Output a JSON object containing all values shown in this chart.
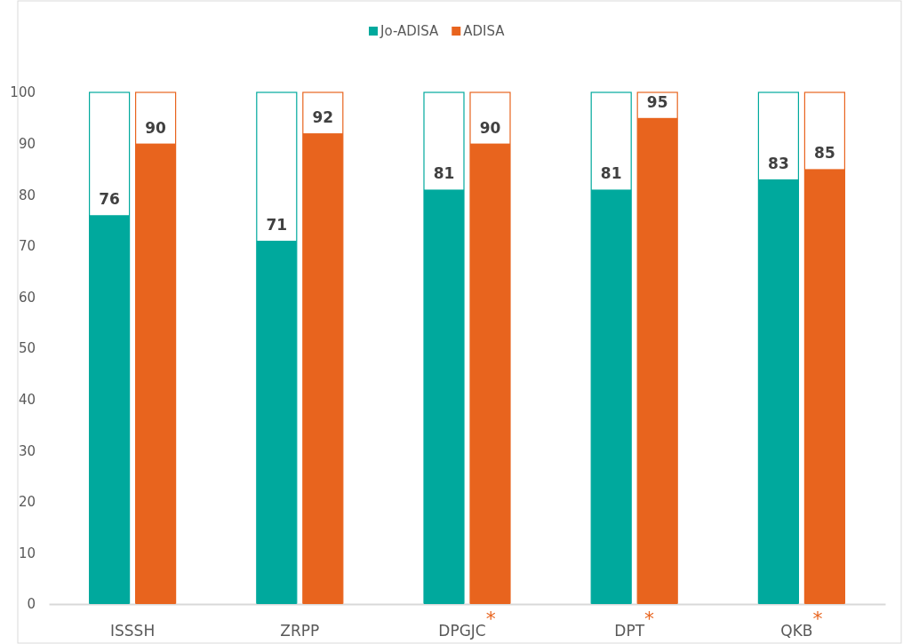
{
  "chart_data": {
    "type": "bar",
    "categories": [
      "ISSSH",
      "ZRPP",
      "DPGJC$^{*}$",
      "DPT$^{*}$",
      "QKB$^{*}$"
    ],
    "series": [
      {
        "name": "Jo-ADISA",
        "color": "#00a99d",
        "values": [
          76,
          71,
          81,
          81,
          83
        ]
      },
      {
        "name": "ADISA",
        "color": "#e8641e",
        "values": [
          90,
          92,
          90,
          95,
          85
        ]
      }
    ],
    "ylim": [
      0,
      100
    ],
    "yticks": [
      0,
      10,
      20,
      30,
      40,
      50,
      60,
      70,
      80,
      90,
      100
    ],
    "data_labels": true,
    "legend": "top",
    "grid": false
  }
}
